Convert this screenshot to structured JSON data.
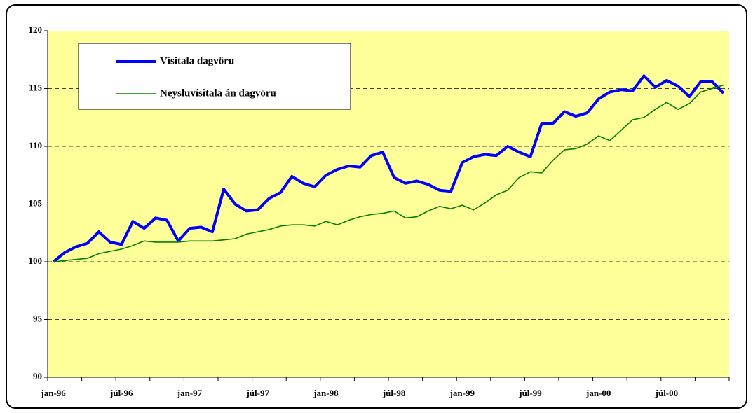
{
  "chart_data": {
    "type": "line",
    "categories": [
      "jan-96",
      null,
      null,
      null,
      null,
      null,
      "júl-96",
      null,
      null,
      null,
      null,
      null,
      "jan-97",
      null,
      null,
      null,
      null,
      null,
      "júl-97",
      null,
      null,
      null,
      null,
      null,
      "jan-98",
      null,
      null,
      null,
      null,
      null,
      "júl-98",
      null,
      null,
      null,
      null,
      null,
      "jan-99",
      null,
      null,
      null,
      null,
      null,
      "júl-99",
      null,
      null,
      null,
      null,
      null,
      "jan-00",
      null,
      null,
      null,
      null,
      null,
      "júl-00",
      null,
      null,
      null,
      null,
      null
    ],
    "series": [
      {
        "name": "Vísitala dagvöru",
        "color": "#0000ff",
        "width": 4,
        "values": [
          100,
          100.8,
          101.3,
          101.6,
          102.6,
          101.7,
          101.5,
          103.5,
          102.9,
          103.8,
          103.6,
          101.8,
          102.9,
          103.0,
          102.6,
          106.3,
          105.0,
          104.4,
          104.5,
          105.5,
          106.0,
          107.4,
          106.8,
          106.5,
          107.5,
          108.0,
          108.3,
          108.2,
          109.2,
          109.5,
          107.3,
          106.8,
          107.0,
          106.7,
          106.2,
          106.1,
          108.6,
          109.1,
          109.3,
          109.2,
          110.0,
          109.5,
          109.1,
          112.0,
          112.0,
          113.0,
          112.6,
          112.9,
          114.1,
          114.7,
          114.9,
          114.8,
          116.1,
          115.1,
          115.7,
          115.2,
          114.3,
          115.6,
          115.6,
          114.6
        ]
      },
      {
        "name": "Neysluvísitala án dagvöru",
        "color": "#008000",
        "width": 1.6,
        "values": [
          100,
          100.1,
          100.2,
          100.3,
          100.7,
          100.9,
          101.1,
          101.4,
          101.8,
          101.7,
          101.7,
          101.7,
          101.8,
          101.8,
          101.8,
          101.9,
          102.0,
          102.4,
          102.6,
          102.8,
          103.1,
          103.2,
          103.2,
          103.1,
          103.5,
          103.2,
          103.6,
          103.9,
          104.1,
          104.2,
          104.4,
          103.8,
          103.9,
          104.4,
          104.8,
          104.6,
          104.9,
          104.5,
          105.1,
          105.8,
          106.2,
          107.3,
          107.8,
          107.7,
          108.8,
          109.7,
          109.8,
          110.2,
          110.9,
          110.5,
          111.4,
          112.3,
          112.5,
          113.2,
          113.8,
          113.2,
          113.7,
          114.7,
          115.0,
          115.3
        ]
      }
    ],
    "ylim": [
      90,
      120
    ],
    "yticks": [
      90,
      95,
      100,
      105,
      110,
      115,
      120
    ],
    "grid": true,
    "legend": "upper left",
    "plot_background": "#ffff99"
  }
}
